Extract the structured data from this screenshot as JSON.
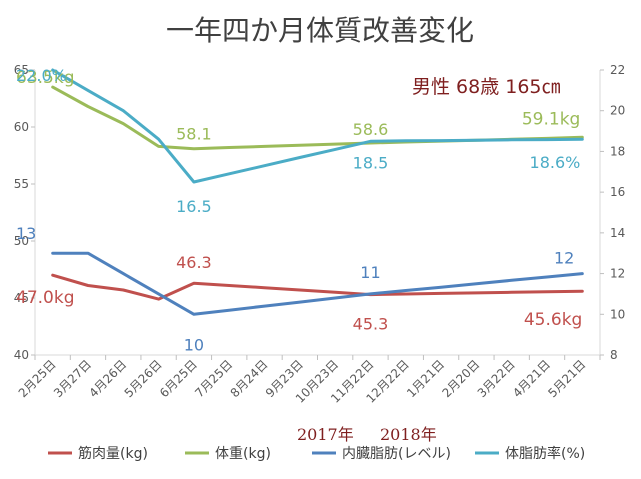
{
  "chart_data": {
    "type": "line",
    "title": "一年四か月体質改善変化",
    "annotation": "男性 68歳 165㎝",
    "year_labels": [
      "2017年",
      "2018年"
    ],
    "categories": [
      "2月25日",
      "3月27日",
      "4月26日",
      "5月26日",
      "6月25日",
      "7月25日",
      "8月24日",
      "9月23日",
      "10月23日",
      "11月22日",
      "12月22日",
      "1月21日",
      "2月20日",
      "3月22日",
      "4月21日",
      "5月21日"
    ],
    "y_left": {
      "range": [
        40,
        65
      ],
      "ticks": [
        "40",
        "45",
        "50",
        "55",
        "60",
        "65"
      ]
    },
    "y_right": {
      "range": [
        8,
        22
      ],
      "ticks": [
        "8",
        "10",
        "12",
        "14",
        "16",
        "18",
        "20",
        "22"
      ]
    },
    "series": [
      {
        "name": "筋肉量(kg)",
        "axis": "left",
        "color": "#C0504D",
        "values": [
          47.0,
          46.1,
          45.7,
          44.9,
          46.3,
          46.1,
          45.9,
          45.7,
          45.5,
          45.3,
          45.35,
          45.4,
          45.45,
          45.5,
          45.55,
          45.6
        ]
      },
      {
        "name": "体重(kg)",
        "axis": "left",
        "color": "#9BBB59",
        "values": [
          63.5,
          61.8,
          60.3,
          58.3,
          58.1,
          58.2,
          58.3,
          58.4,
          58.5,
          58.6,
          58.68,
          58.76,
          58.84,
          58.92,
          59.0,
          59.1
        ]
      },
      {
        "name": "内臓脂肪(レベル)",
        "axis": "right",
        "color": "#4F81BD",
        "values": [
          13,
          13,
          12,
          11,
          10,
          10.2,
          10.4,
          10.6,
          10.8,
          11,
          11.17,
          11.33,
          11.5,
          11.67,
          11.83,
          12
        ]
      },
      {
        "name": "体脂肪率(%)",
        "axis": "right",
        "color": "#4BACC6",
        "values": [
          22.0,
          21.0,
          20.0,
          18.6,
          16.5,
          16.9,
          17.3,
          17.7,
          18.1,
          18.5,
          18.52,
          18.53,
          18.55,
          18.57,
          18.58,
          18.6
        ]
      }
    ],
    "data_labels": [
      {
        "series": 1,
        "index": 0,
        "text": "63.5kg"
      },
      {
        "series": 1,
        "index": 4,
        "text": "58.1"
      },
      {
        "series": 1,
        "index": 9,
        "text": "58.6"
      },
      {
        "series": 1,
        "index": 15,
        "text": "59.1kg"
      },
      {
        "series": 3,
        "index": 0,
        "text": "22.0%"
      },
      {
        "series": 3,
        "index": 4,
        "text": "16.5"
      },
      {
        "series": 3,
        "index": 9,
        "text": "18.5"
      },
      {
        "series": 3,
        "index": 15,
        "text": "18.6%"
      },
      {
        "series": 2,
        "index": 0,
        "text": "13"
      },
      {
        "series": 2,
        "index": 4,
        "text": "10"
      },
      {
        "series": 2,
        "index": 9,
        "text": "11"
      },
      {
        "series": 2,
        "index": 15,
        "text": "12"
      },
      {
        "series": 0,
        "index": 0,
        "text": "47.0kg"
      },
      {
        "series": 0,
        "index": 4,
        "text": "46.3"
      },
      {
        "series": 0,
        "index": 9,
        "text": "45.3"
      },
      {
        "series": 0,
        "index": 15,
        "text": "45.6kg"
      }
    ],
    "colors": {
      "annotation": "#7F1F1F",
      "axis_text": "#595959",
      "title": "#404040"
    },
    "legend_position": "bottom"
  }
}
